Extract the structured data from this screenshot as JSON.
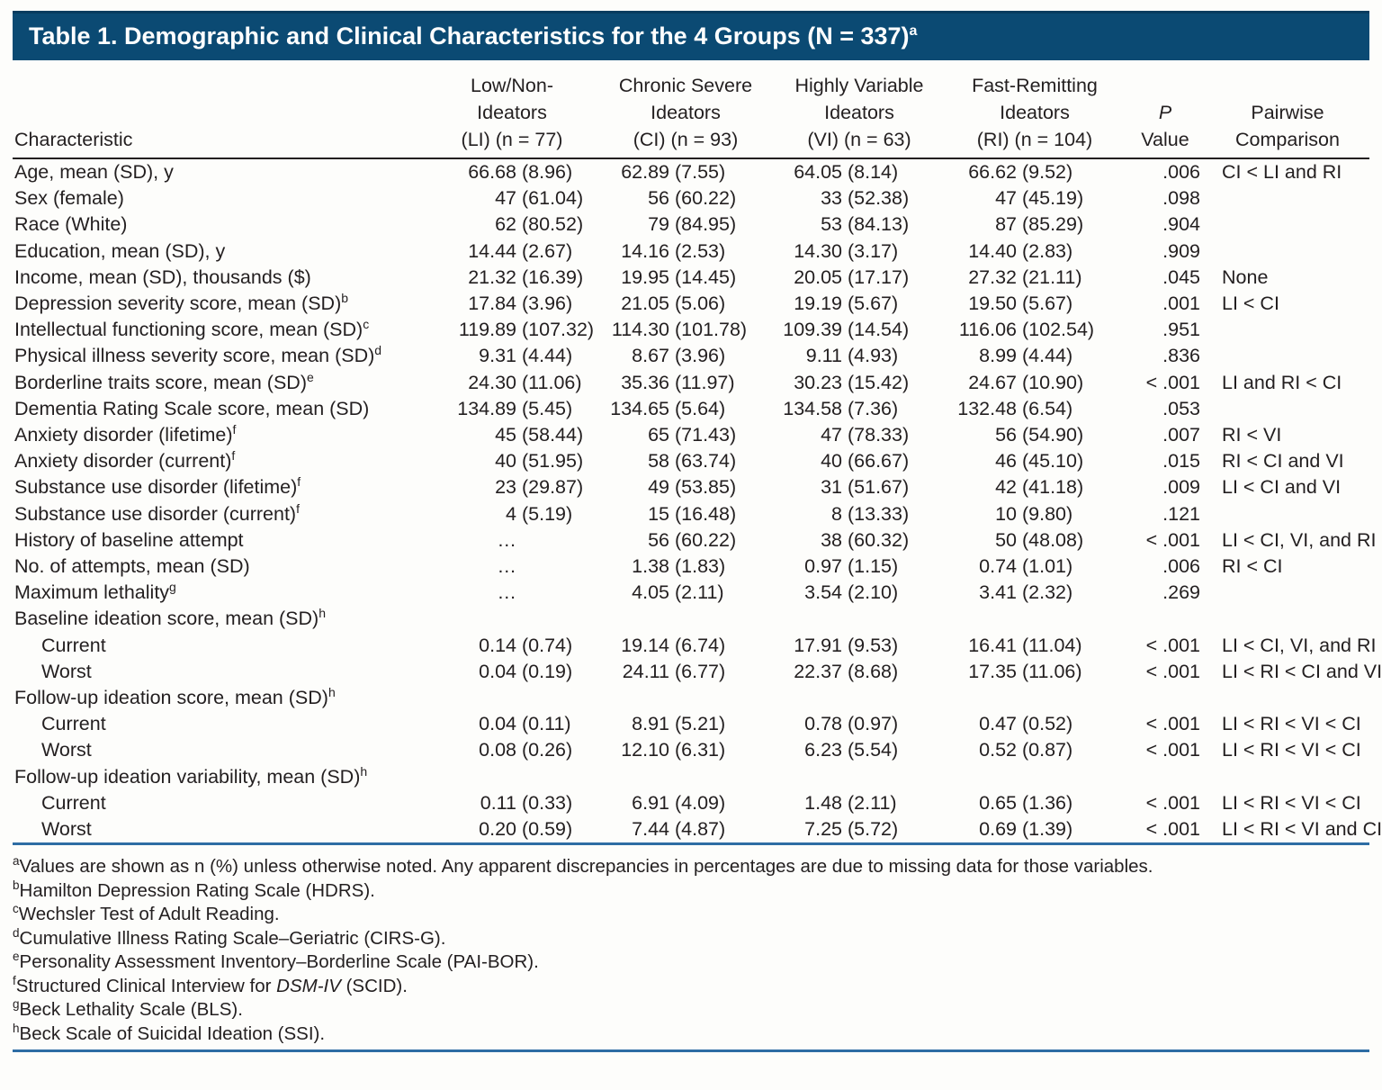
{
  "title": {
    "text": "Table 1. Demographic and Clinical Characteristics for the 4 Groups (N = 337)",
    "sup": "a"
  },
  "colors": {
    "title_bar": "#0B4A73",
    "title_edge": "#083C5F",
    "rule_dark": "#231F20",
    "rule_blue": "#2E6DA4",
    "text": "#231F20",
    "title_text": "#FFFFFF"
  },
  "table": {
    "columns": [
      {
        "id": "characteristic",
        "lines": [
          "Characteristic"
        ],
        "align": "left"
      },
      {
        "id": "li",
        "lines": [
          "Low/Non-",
          "Ideators",
          "(LI) (n = 77)"
        ]
      },
      {
        "id": "ci",
        "lines": [
          "Chronic Severe",
          "Ideators",
          "(CI) (n = 93)"
        ]
      },
      {
        "id": "vi",
        "lines": [
          "Highly Variable",
          "Ideators",
          "(VI) (n = 63)"
        ]
      },
      {
        "id": "ri",
        "lines": [
          "Fast-Remitting",
          "Ideators",
          "(RI) (n = 104)"
        ]
      },
      {
        "id": "p",
        "lines": [
          "P",
          "Value"
        ],
        "italic_first": true
      },
      {
        "id": "pairwise",
        "lines": [
          "Pairwise",
          "Comparison"
        ]
      }
    ],
    "rows": [
      {
        "label": "Age, mean (SD), y",
        "sup": "",
        "indent": false,
        "section": false,
        "values": [
          "66.68 (8.96)",
          "62.89 (7.55)",
          "64.05 (8.14)",
          "66.62 (9.52)"
        ],
        "p": ".006",
        "pairwise": "CI < LI and RI"
      },
      {
        "label": "Sex (female)",
        "sup": "",
        "indent": false,
        "section": false,
        "values": [
          "47 (61.04)",
          "56 (60.22)",
          "33 (52.38)",
          "47 (45.19)"
        ],
        "p": ".098",
        "pairwise": ""
      },
      {
        "label": "Race (White)",
        "sup": "",
        "indent": false,
        "section": false,
        "values": [
          "62 (80.52)",
          "79 (84.95)",
          "53 (84.13)",
          "87 (85.29)"
        ],
        "p": ".904",
        "pairwise": ""
      },
      {
        "label": "Education, mean (SD), y",
        "sup": "",
        "indent": false,
        "section": false,
        "values": [
          "14.44 (2.67)",
          "14.16 (2.53)",
          "14.30 (3.17)",
          "14.40 (2.83)"
        ],
        "p": ".909",
        "pairwise": ""
      },
      {
        "label": "Income, mean (SD), thousands ($)",
        "sup": "",
        "indent": false,
        "section": false,
        "values": [
          "21.32 (16.39)",
          "19.95 (14.45)",
          "20.05 (17.17)",
          "27.32 (21.11)"
        ],
        "p": ".045",
        "pairwise": "None"
      },
      {
        "label": "Depression severity score, mean (SD)",
        "sup": "b",
        "indent": false,
        "section": false,
        "values": [
          "17.84 (3.96)",
          "21.05 (5.06)",
          "19.19 (5.67)",
          "19.50 (5.67)"
        ],
        "p": ".001",
        "pairwise": "LI < CI"
      },
      {
        "label": "Intellectual functioning score, mean (SD)",
        "sup": "c",
        "indent": false,
        "section": false,
        "values": [
          "119.89 (107.32)",
          "114.30 (101.78)",
          "109.39 (14.54)",
          "116.06 (102.54)"
        ],
        "p": ".951",
        "pairwise": ""
      },
      {
        "label": "Physical illness severity score, mean (SD)",
        "sup": "d",
        "indent": false,
        "section": false,
        "values": [
          "9.31 (4.44)",
          "8.67 (3.96)",
          "9.11 (4.93)",
          "8.99 (4.44)"
        ],
        "p": ".836",
        "pairwise": ""
      },
      {
        "label": "Borderline traits score, mean (SD)",
        "sup": "e",
        "indent": false,
        "section": false,
        "values": [
          "24.30 (11.06)",
          "35.36 (11.97)",
          "30.23 (15.42)",
          "24.67 (10.90)"
        ],
        "p": "< .001",
        "pairwise": "LI and RI < CI"
      },
      {
        "label": "Dementia Rating Scale score, mean (SD)",
        "sup": "",
        "indent": false,
        "section": false,
        "values": [
          "134.89 (5.45)",
          "134.65 (5.64)",
          "134.58 (7.36)",
          "132.48 (6.54)"
        ],
        "p": ".053",
        "pairwise": ""
      },
      {
        "label": "Anxiety disorder (lifetime)",
        "sup": "f",
        "indent": false,
        "section": false,
        "values": [
          "45 (58.44)",
          "65 (71.43)",
          "47 (78.33)",
          "56 (54.90)"
        ],
        "p": ".007",
        "pairwise": "RI < VI"
      },
      {
        "label": "Anxiety disorder (current)",
        "sup": "f",
        "indent": false,
        "section": false,
        "values": [
          "40 (51.95)",
          "58 (63.74)",
          "40 (66.67)",
          "46 (45.10)"
        ],
        "p": ".015",
        "pairwise": "RI < CI and VI"
      },
      {
        "label": "Substance use disorder (lifetime)",
        "sup": "f",
        "indent": false,
        "section": false,
        "values": [
          "23 (29.87)",
          "49 (53.85)",
          "31 (51.67)",
          "42 (41.18)"
        ],
        "p": ".009",
        "pairwise": "LI < CI and VI"
      },
      {
        "label": "Substance use disorder (current)",
        "sup": "f",
        "indent": false,
        "section": false,
        "values": [
          "4 (5.19)",
          "15 (16.48)",
          "8 (13.33)",
          "10 (9.80)"
        ],
        "p": ".121",
        "pairwise": ""
      },
      {
        "label": "History of baseline attempt",
        "sup": "",
        "indent": false,
        "section": false,
        "values": [
          "…",
          "56 (60.22)",
          "38 (60.32)",
          "50 (48.08)"
        ],
        "p": "< .001",
        "pairwise": "LI < CI, VI, and RI"
      },
      {
        "label": "No. of attempts, mean (SD)",
        "sup": "",
        "indent": false,
        "section": false,
        "values": [
          "…",
          "1.38 (1.83)",
          "0.97 (1.15)",
          "0.74 (1.01)"
        ],
        "p": ".006",
        "pairwise": "RI < CI"
      },
      {
        "label": "Maximum lethality",
        "sup": "g",
        "indent": false,
        "section": false,
        "values": [
          "…",
          "4.05 (2.11)",
          "3.54 (2.10)",
          "3.41 (2.32)"
        ],
        "p": ".269",
        "pairwise": ""
      },
      {
        "label": "Baseline ideation score, mean (SD)",
        "sup": "h",
        "indent": false,
        "section": true,
        "values": [
          "",
          "",
          "",
          ""
        ],
        "p": "",
        "pairwise": ""
      },
      {
        "label": "Current",
        "sup": "",
        "indent": true,
        "section": false,
        "values": [
          "0.14 (0.74)",
          "19.14 (6.74)",
          "17.91 (9.53)",
          "16.41 (11.04)"
        ],
        "p": "< .001",
        "pairwise": "LI < CI, VI, and RI"
      },
      {
        "label": "Worst",
        "sup": "",
        "indent": true,
        "section": false,
        "values": [
          "0.04 (0.19)",
          "24.11 (6.77)",
          "22.37 (8.68)",
          "17.35 (11.06)"
        ],
        "p": "< .001",
        "pairwise": "LI < RI < CI and VI"
      },
      {
        "label": "Follow-up ideation score, mean (SD)",
        "sup": "h",
        "indent": false,
        "section": true,
        "values": [
          "",
          "",
          "",
          ""
        ],
        "p": "",
        "pairwise": ""
      },
      {
        "label": "Current",
        "sup": "",
        "indent": true,
        "section": false,
        "values": [
          "0.04 (0.11)",
          "8.91 (5.21)",
          "0.78 (0.97)",
          "0.47 (0.52)"
        ],
        "p": "< .001",
        "pairwise": "LI < RI < VI < CI"
      },
      {
        "label": "Worst",
        "sup": "",
        "indent": true,
        "section": false,
        "values": [
          "0.08 (0.26)",
          "12.10 (6.31)",
          "6.23 (5.54)",
          "0.52 (0.87)"
        ],
        "p": "< .001",
        "pairwise": "LI < RI < VI < CI"
      },
      {
        "label": "Follow-up ideation variability, mean (SD)",
        "sup": "h",
        "indent": false,
        "section": true,
        "values": [
          "",
          "",
          "",
          ""
        ],
        "p": "",
        "pairwise": ""
      },
      {
        "label": "Current",
        "sup": "",
        "indent": true,
        "section": false,
        "values": [
          "0.11 (0.33)",
          "6.91 (4.09)",
          "1.48 (2.11)",
          "0.65 (1.36)"
        ],
        "p": "< .001",
        "pairwise": "LI < RI < VI < CI"
      },
      {
        "label": "Worst",
        "sup": "",
        "indent": true,
        "section": false,
        "values": [
          "0.20 (0.59)",
          "7.44 (4.87)",
          "7.25 (5.72)",
          "0.69 (1.39)"
        ],
        "p": "< .001",
        "pairwise": "LI < RI < VI and CI"
      }
    ]
  },
  "footnotes": [
    {
      "marker": "a",
      "segments": [
        {
          "t": "Values are shown as n (%) unless otherwise noted. Any apparent discrepancies in percentages are due to missing data for those variables.",
          "i": false
        }
      ]
    },
    {
      "marker": "b",
      "segments": [
        {
          "t": "Hamilton Depression Rating Scale (HDRS).",
          "i": false
        }
      ]
    },
    {
      "marker": "c",
      "segments": [
        {
          "t": "Wechsler Test of Adult Reading.",
          "i": false
        }
      ]
    },
    {
      "marker": "d",
      "segments": [
        {
          "t": "Cumulative Illness Rating Scale–Geriatric (CIRS-G).",
          "i": false
        }
      ]
    },
    {
      "marker": "e",
      "segments": [
        {
          "t": "Personality Assessment Inventory–Borderline Scale (PAI-BOR).",
          "i": false
        }
      ]
    },
    {
      "marker": "f",
      "segments": [
        {
          "t": "Structured Clinical Interview for ",
          "i": false
        },
        {
          "t": "DSM-IV",
          "i": true
        },
        {
          "t": " (SCID).",
          "i": false
        }
      ]
    },
    {
      "marker": "g",
      "segments": [
        {
          "t": "Beck Lethality Scale (BLS).",
          "i": false
        }
      ]
    },
    {
      "marker": "h",
      "segments": [
        {
          "t": "Beck Scale of Suicidal Ideation (SSI).",
          "i": false
        }
      ]
    }
  ]
}
